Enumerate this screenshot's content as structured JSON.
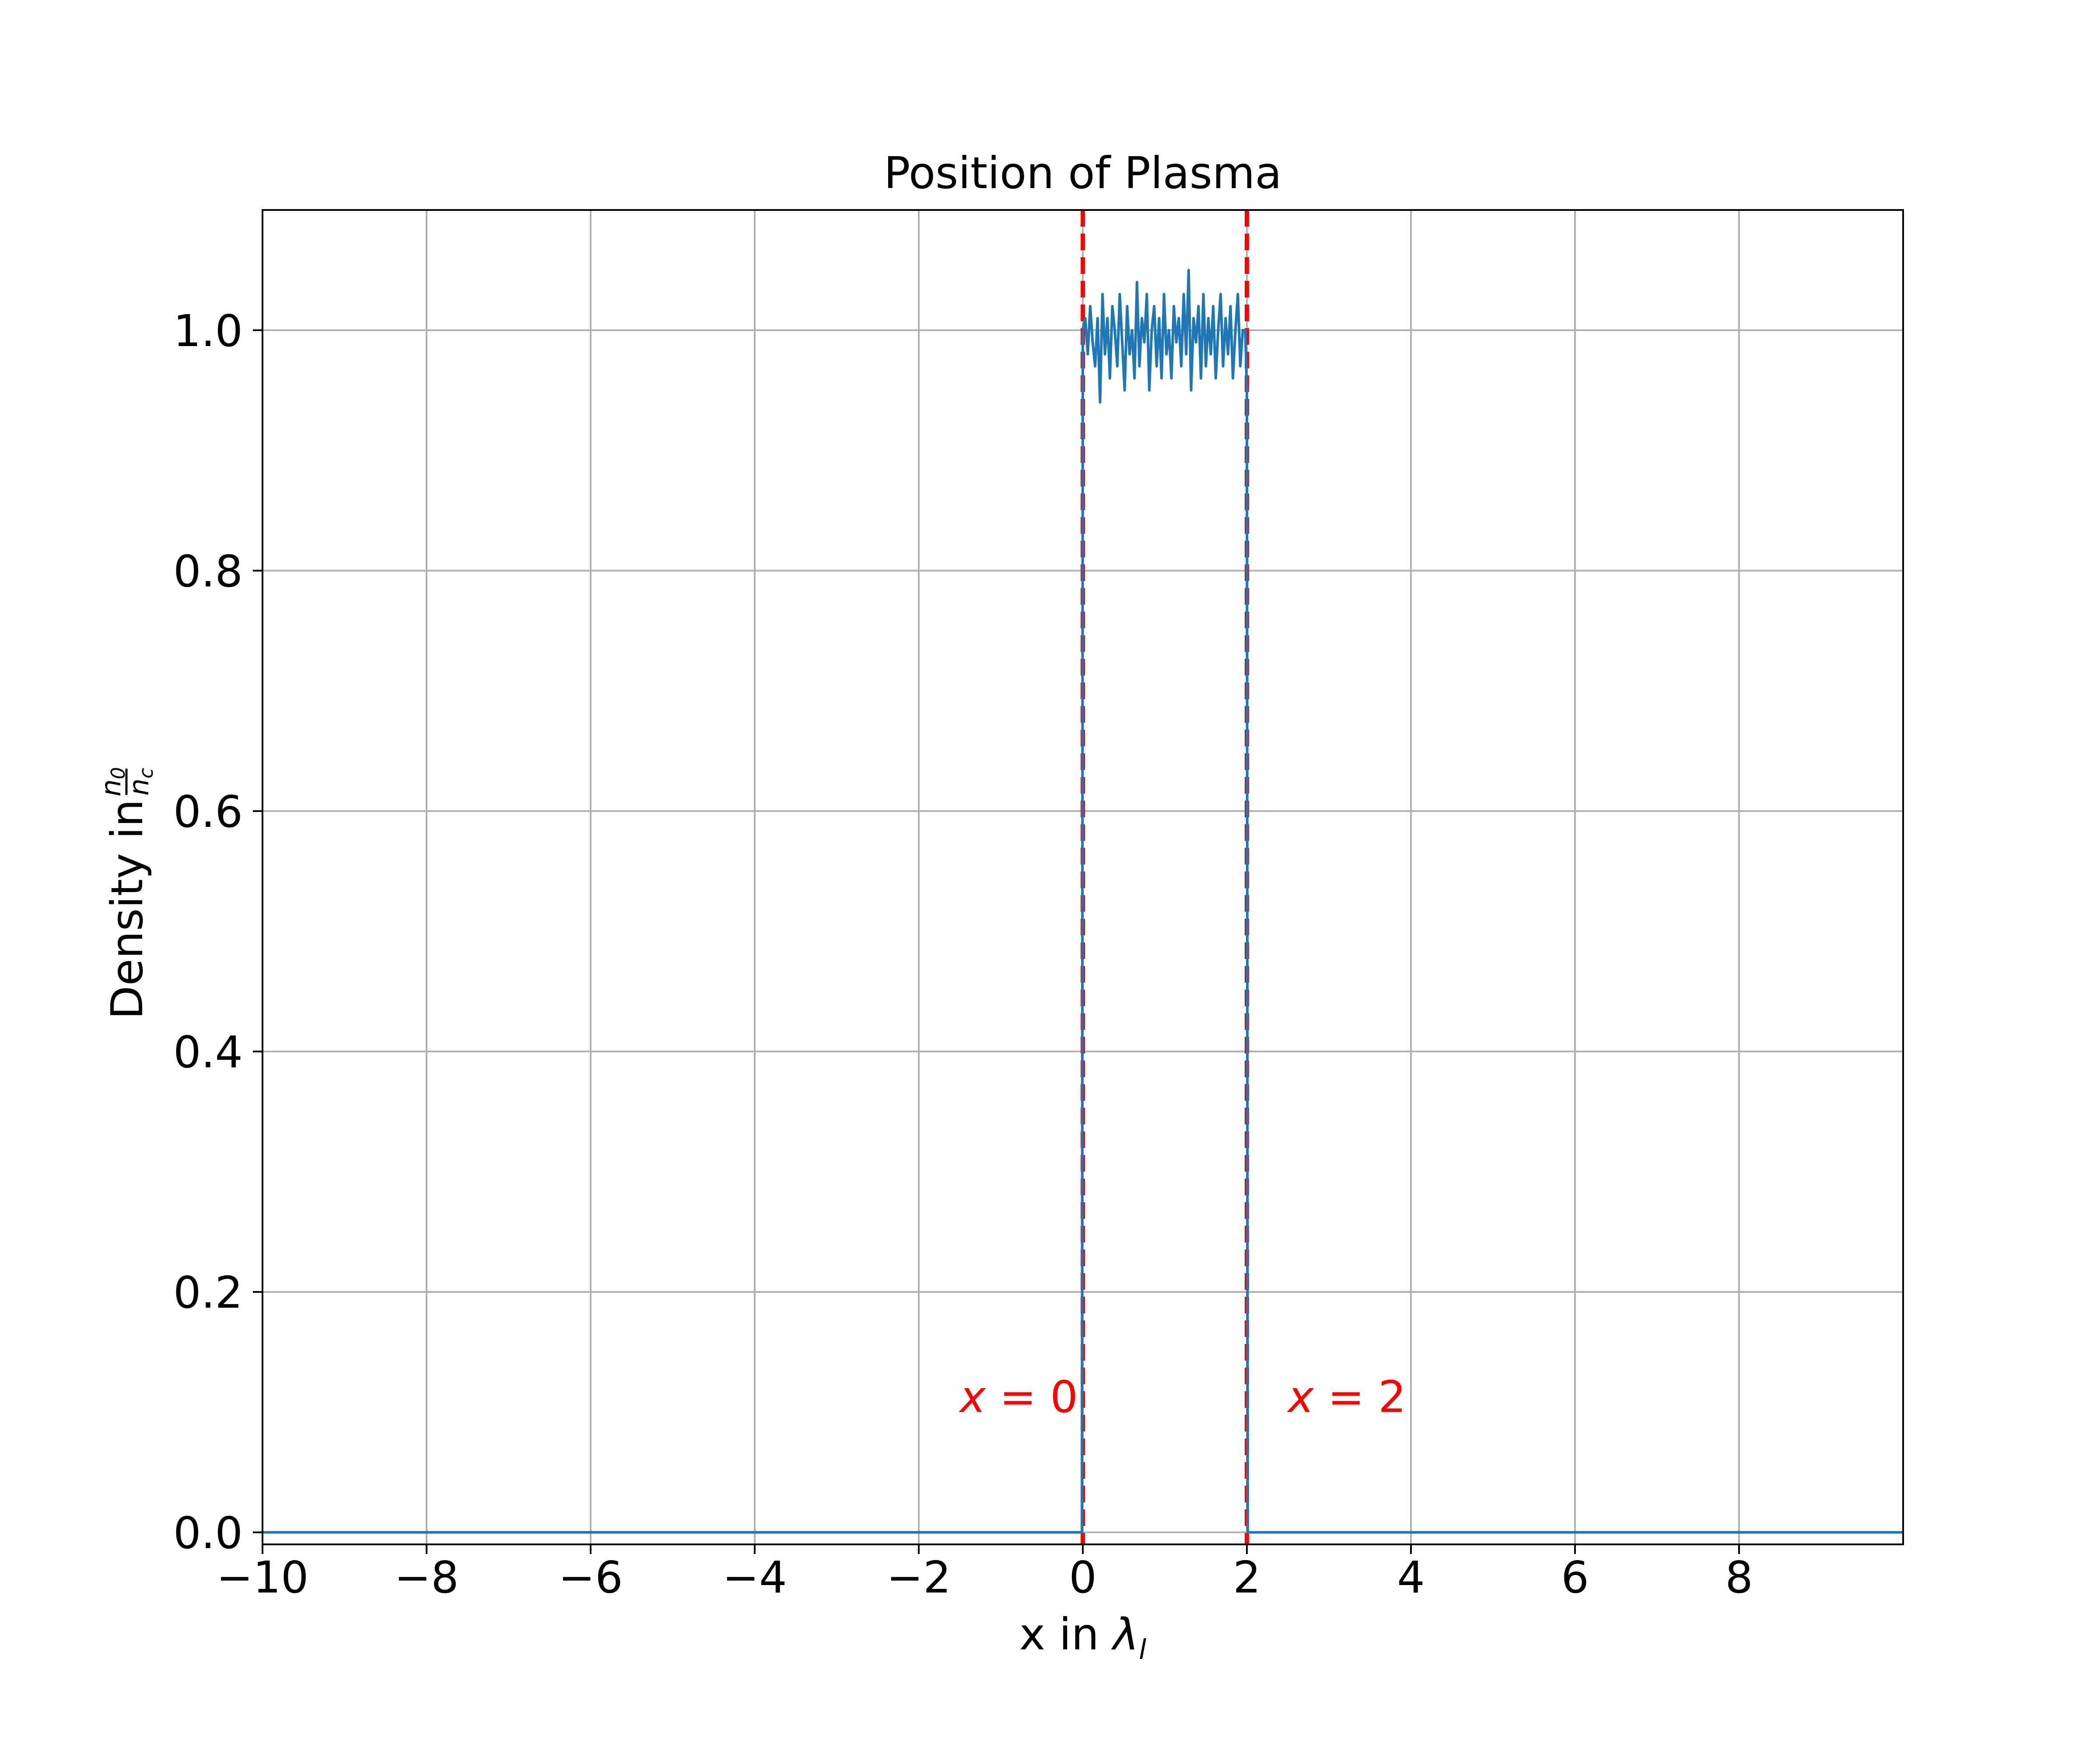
{
  "chart_data": {
    "type": "line",
    "title": "Position of Plasma",
    "xlabel": {
      "text": "x in ",
      "symbol": "λ",
      "subscript": "l"
    },
    "ylabel": {
      "text": "Density in ",
      "num": "n",
      "num_sub": "0",
      "den": "n",
      "den_sub": "c"
    },
    "xlim": [
      -10,
      10
    ],
    "ylim": [
      -0.01,
      1.1
    ],
    "xticks": [
      -10,
      -8,
      -6,
      -4,
      -2,
      0,
      2,
      4,
      6,
      8
    ],
    "xtick_labels": [
      "−10",
      "−8",
      "−6",
      "−4",
      "−2",
      "0",
      "2",
      "4",
      "6",
      "8"
    ],
    "yticks": [
      0.0,
      0.2,
      0.4,
      0.6,
      0.8,
      1.0
    ],
    "ytick_labels": [
      "0.0",
      "0.2",
      "0.4",
      "0.6",
      "0.8",
      "1.0"
    ],
    "grid": true,
    "series": [
      {
        "color": "#1f77b4",
        "x": [
          -10,
          -0.01,
          0.0,
          0.03,
          0.06,
          0.09,
          0.12,
          0.15,
          0.18,
          0.21,
          0.24,
          0.27,
          0.3,
          0.33,
          0.36,
          0.39,
          0.42,
          0.45,
          0.48,
          0.51,
          0.54,
          0.57,
          0.6,
          0.63,
          0.66,
          0.69,
          0.72,
          0.75,
          0.78,
          0.81,
          0.84,
          0.87,
          0.9,
          0.93,
          0.96,
          0.99,
          1.02,
          1.05,
          1.08,
          1.11,
          1.14,
          1.17,
          1.2,
          1.23,
          1.26,
          1.29,
          1.32,
          1.35,
          1.38,
          1.41,
          1.44,
          1.47,
          1.5,
          1.53,
          1.56,
          1.59,
          1.62,
          1.65,
          1.68,
          1.71,
          1.74,
          1.77,
          1.8,
          1.83,
          1.86,
          1.89,
          1.92,
          1.95,
          1.98,
          2.0,
          2.01,
          10
        ],
        "y": [
          0.0,
          0.0,
          1.0,
          1.01,
          0.98,
          1.02,
          0.99,
          0.97,
          1.01,
          0.94,
          1.03,
          0.98,
          1.01,
          0.96,
          1.02,
          1.0,
          0.97,
          1.03,
          0.99,
          0.95,
          1.02,
          0.98,
          1.0,
          0.96,
          1.04,
          0.97,
          1.01,
          0.99,
          1.03,
          0.95,
          1.0,
          1.02,
          0.97,
          1.01,
          0.96,
          1.03,
          0.98,
          1.0,
          0.96,
          1.02,
          0.99,
          1.01,
          0.97,
          1.03,
          0.98,
          1.05,
          0.95,
          1.01,
          0.99,
          1.02,
          0.96,
          1.03,
          0.97,
          1.01,
          0.98,
          1.02,
          0.96,
          1.0,
          1.03,
          0.97,
          1.01,
          0.98,
          1.02,
          0.96,
          1.0,
          1.03,
          0.97,
          1.0,
          1.0,
          0.95,
          0.0,
          0.0
        ]
      }
    ],
    "vlines": [
      {
        "x": 0,
        "color": "#ff0000",
        "style": "dashed"
      },
      {
        "x": 2,
        "color": "#ff0000",
        "style": "dashed"
      }
    ],
    "annotations": [
      {
        "var": "x",
        "eq": " = ",
        "value": "0",
        "x": -1.5,
        "y": 0.1,
        "color": "#ff0000"
      },
      {
        "var": "x",
        "eq": " = ",
        "value": "2",
        "x": 2.5,
        "y": 0.1,
        "color": "#ff0000"
      }
    ]
  }
}
